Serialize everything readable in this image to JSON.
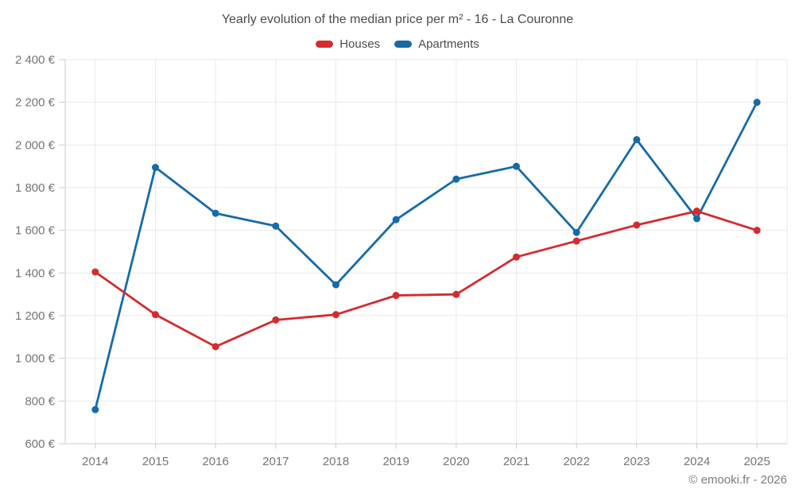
{
  "footer": {
    "credit": "© emooki.fr - 2026"
  },
  "chart_data": {
    "type": "line",
    "title": "Yearly evolution of the median price per m² - 16 - La Couronne",
    "categories": [
      "2014",
      "2015",
      "2016",
      "2017",
      "2018",
      "2019",
      "2020",
      "2021",
      "2022",
      "2023",
      "2024",
      "2025"
    ],
    "series": [
      {
        "name": "Houses",
        "color": "#d62a2e",
        "values": [
          1405,
          1205,
          1055,
          1180,
          1205,
          1295,
          1300,
          1475,
          1550,
          1625,
          1690,
          1600
        ]
      },
      {
        "name": "Apartments",
        "color": "#166ba6",
        "values": [
          760,
          1895,
          1680,
          1620,
          1345,
          1650,
          1840,
          1900,
          1590,
          2025,
          1655,
          2200
        ]
      }
    ],
    "ylim": [
      600,
      2400
    ],
    "ytick_step": 200,
    "value_suffix": " €",
    "grid": true,
    "legend_position": "top",
    "grid_color": "#e9e9e9",
    "axis_color": "#cccccc",
    "tick_label_color": "#757575"
  }
}
